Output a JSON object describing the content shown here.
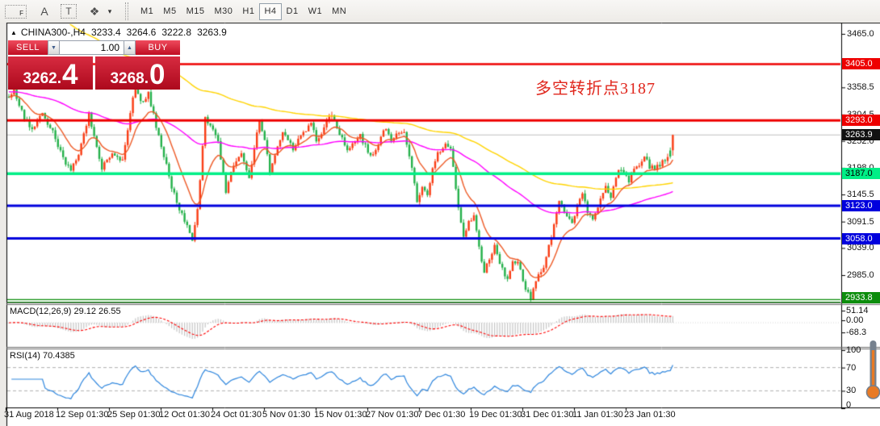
{
  "window": {
    "toolbar": {
      "tool_icons": [
        {
          "name": "fibonacci-tool-icon",
          "glyph": "F"
        },
        {
          "name": "text-label-tool-icon",
          "glyph": "A"
        },
        {
          "name": "text-tool-icon",
          "glyph": "T"
        },
        {
          "name": "shapes-tool-icon",
          "glyph": "❖"
        },
        {
          "name": "shapes-dropdown-icon",
          "glyph": "▾"
        }
      ],
      "timeframes": [
        "M1",
        "M5",
        "M15",
        "M30",
        "H1",
        "H4",
        "D1",
        "W1",
        "MN"
      ],
      "active_timeframe": "H4"
    }
  },
  "chart": {
    "header": {
      "collapse_icon": "▲",
      "symbol": "CHINA300-,H4",
      "open": "3233.4",
      "high": "3264.6",
      "low": "3222.8",
      "close": "3263.9"
    },
    "trade_panel": {
      "sell_label": "SELL",
      "buy_label": "BUY",
      "volume": "1.00",
      "spinner_down": "▼",
      "spinner_up": "▲",
      "decimal_point": ".",
      "sell_price_int": "3262",
      "sell_price_frac": "4",
      "buy_price_int": "3268",
      "buy_price_frac": "0"
    },
    "annotation": {
      "text": "多空转折点3187",
      "color": "#e0251b"
    },
    "current_price": {
      "value": 3263.9,
      "label": "3263.9",
      "badge_bg": "#111111",
      "badge_fg": "#ffffff",
      "line_color": "#c0c0c0"
    },
    "levels": [
      {
        "price": 3405.0,
        "label": "3405.0",
        "color": "#ee0000",
        "badge_bg": "#ee0000",
        "badge_fg": "#ffffff",
        "thickness": 2.5,
        "style": "solid"
      },
      {
        "price": 3293.0,
        "label": "3293.0",
        "color": "#ee0000",
        "badge_bg": "#ee0000",
        "badge_fg": "#ffffff",
        "thickness": 3,
        "style": "solid"
      },
      {
        "price": 3187.0,
        "label": "3187.0",
        "color": "#00ef86",
        "badge_bg": "#00ef86",
        "badge_fg": "#000000",
        "thickness": 3.5,
        "style": "solid"
      },
      {
        "price": 3123.0,
        "label": "3123.0",
        "color": "#0000dd",
        "badge_bg": "#0000dd",
        "badge_fg": "#ffffff",
        "thickness": 3,
        "style": "solid"
      },
      {
        "price": 3058.0,
        "label": "3058.0",
        "color": "#0000dd",
        "badge_bg": "#0000dd",
        "badge_fg": "#ffffff",
        "thickness": 3,
        "style": "solid"
      },
      {
        "price": 2933.8,
        "label": "2933.8",
        "color": "#058a05",
        "badge_bg": "#0c8d0c",
        "badge_fg": "#ffffff",
        "thickness": 1.2,
        "style": "double"
      }
    ],
    "y_ticks": [
      {
        "label": "3465.0",
        "price": 3465.0
      },
      {
        "label": "3358.5",
        "price": 3358.5
      },
      {
        "label": "3304.5",
        "price": 3304.5
      },
      {
        "label": "3252.0",
        "price": 3252.0
      },
      {
        "label": "3198.0",
        "price": 3198.0
      },
      {
        "label": "3145.5",
        "price": 3145.5
      },
      {
        "label": "3091.5",
        "price": 3091.5
      },
      {
        "label": "3039.0",
        "price": 3039.0
      },
      {
        "label": "2985.0",
        "price": 2985.0
      }
    ],
    "x_labels": [
      "31 Aug 2018",
      "12 Sep 01:30",
      "25 Sep 01:30",
      "12 Oct 01:30",
      "24 Oct 01:30",
      "5 Nov 01:30",
      "15 Nov 01:30",
      "27 Nov 01:30",
      "7 Dec 01:30",
      "19 Dec 01:30",
      "31 Dec 01:30",
      "11 Jan 01:30",
      "23 Jan 01:30"
    ]
  },
  "chart_data": {
    "type": "candlestick",
    "symbol": "CHINA300-",
    "timeframe": "H4",
    "candle_count": 258,
    "up_color": "#fa3c14",
    "down_color": "#24b14a",
    "last_ohlc": {
      "open": 3233.4,
      "high": 3264.6,
      "low": 3222.8,
      "close": 3263.9
    },
    "prev_ohlc": {
      "open": 3233,
      "high": 3239,
      "low": 3217,
      "close": 3221
    },
    "price_swings": [
      [
        0,
        3338
      ],
      [
        2,
        3352
      ],
      [
        6,
        3298
      ],
      [
        9,
        3272
      ],
      [
        13,
        3306
      ],
      [
        17,
        3268
      ],
      [
        21,
        3220
      ],
      [
        24,
        3190
      ],
      [
        28,
        3242
      ],
      [
        31,
        3308
      ],
      [
        34,
        3238
      ],
      [
        36,
        3196
      ],
      [
        40,
        3232
      ],
      [
        44,
        3212
      ],
      [
        47,
        3310
      ],
      [
        49,
        3362
      ],
      [
        51,
        3328
      ],
      [
        54,
        3345
      ],
      [
        58,
        3262
      ],
      [
        61,
        3205
      ],
      [
        63,
        3160
      ],
      [
        67,
        3105
      ],
      [
        71,
        3058
      ],
      [
        73,
        3120
      ],
      [
        76,
        3298
      ],
      [
        79,
        3278
      ],
      [
        81,
        3252
      ],
      [
        84,
        3152
      ],
      [
        87,
        3208
      ],
      [
        90,
        3222
      ],
      [
        93,
        3180
      ],
      [
        97,
        3292
      ],
      [
        99,
        3255
      ],
      [
        101,
        3190
      ],
      [
        104,
        3240
      ],
      [
        106,
        3268
      ],
      [
        110,
        3235
      ],
      [
        113,
        3262
      ],
      [
        117,
        3290
      ],
      [
        119,
        3256
      ],
      [
        121,
        3268
      ],
      [
        125,
        3308
      ],
      [
        128,
        3268
      ],
      [
        131,
        3232
      ],
      [
        134,
        3252
      ],
      [
        136,
        3262
      ],
      [
        139,
        3230
      ],
      [
        141,
        3226
      ],
      [
        144,
        3256
      ],
      [
        146,
        3280
      ],
      [
        148,
        3252
      ],
      [
        151,
        3268
      ],
      [
        153,
        3270
      ],
      [
        156,
        3200
      ],
      [
        158,
        3135
      ],
      [
        160,
        3158
      ],
      [
        162,
        3142
      ],
      [
        164,
        3196
      ],
      [
        166,
        3228
      ],
      [
        169,
        3246
      ],
      [
        171,
        3234
      ],
      [
        174,
        3120
      ],
      [
        176,
        3062
      ],
      [
        178,
        3092
      ],
      [
        180,
        3106
      ],
      [
        182,
        3040
      ],
      [
        184,
        2992
      ],
      [
        186,
        3016
      ],
      [
        188,
        3042
      ],
      [
        190,
        3006
      ],
      [
        193,
        2976
      ],
      [
        195,
        3010
      ],
      [
        197,
        3014
      ],
      [
        199,
        2972
      ],
      [
        202,
        2938
      ],
      [
        204,
        2972
      ],
      [
        207,
        3004
      ],
      [
        210,
        3062
      ],
      [
        213,
        3132
      ],
      [
        215,
        3112
      ],
      [
        218,
        3092
      ],
      [
        220,
        3122
      ],
      [
        222,
        3142
      ],
      [
        224,
        3112
      ],
      [
        226,
        3096
      ],
      [
        229,
        3132
      ],
      [
        231,
        3158
      ],
      [
        233,
        3142
      ],
      [
        236,
        3198
      ],
      [
        238,
        3186
      ],
      [
        240,
        3174
      ],
      [
        243,
        3202
      ],
      [
        246,
        3218
      ],
      [
        248,
        3202
      ],
      [
        250,
        3194
      ],
      [
        252,
        3206
      ],
      [
        254,
        3212
      ],
      [
        255,
        3224
      ],
      [
        256,
        3233
      ],
      [
        257,
        3263.9
      ]
    ],
    "moving_averages": [
      {
        "name": "ma-fast",
        "period": 13,
        "seed": 3340,
        "color": "#ee5a26"
      },
      {
        "name": "ma-mid",
        "period": 90,
        "seed": 3350,
        "color": "#ff00ff"
      },
      {
        "name": "ma-slow",
        "period": 150,
        "seed": 3565,
        "color": "#ffd400"
      }
    ]
  },
  "macd": {
    "label": "MACD(12,26,9) 29.12 26.55",
    "axis_ticks": [
      "51.14",
      "0.00",
      "-68.3"
    ],
    "bar_color": "#c6c6c6",
    "signal_color": "#ff0000"
  },
  "rsi": {
    "label": "RSI(14) 70.4385",
    "axis_ticks": [
      "100",
      "70",
      "30",
      "0"
    ],
    "line_color": "#2e86de",
    "levels": [
      70,
      30
    ],
    "level_color": "#b0b0b0"
  }
}
